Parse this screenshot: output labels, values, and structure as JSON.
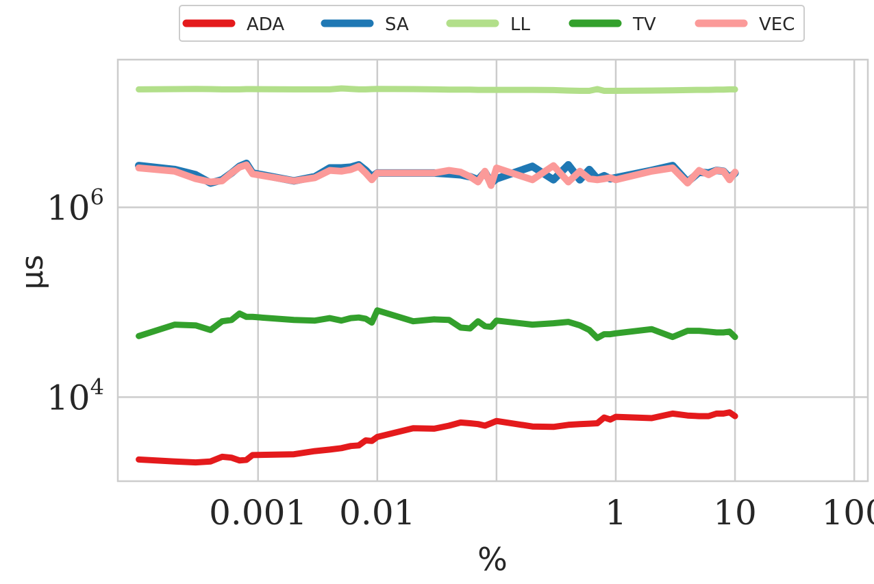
{
  "chart_data": {
    "type": "line",
    "xlabel": "%",
    "ylabel": "μs",
    "x_scale": "log",
    "y_scale": "log",
    "grid": true,
    "legend_placement": "top-center",
    "xlim": [
      6.67e-05,
      130
    ],
    "ylim": [
      1300,
      36000000
    ],
    "x_ticks": [
      {
        "value": 0.001,
        "label": "0.001"
      },
      {
        "value": 0.01,
        "label": "0.01"
      },
      {
        "value": 0.1,
        "label": ""
      },
      {
        "value": 1,
        "label": "1"
      },
      {
        "value": 10,
        "label": "10"
      },
      {
        "value": 100,
        "label": "100"
      }
    ],
    "y_ticks": [
      {
        "value": 10000,
        "base": "10",
        "exp": "4"
      },
      {
        "value": 1000000,
        "base": "10",
        "exp": "6"
      }
    ],
    "series": [
      {
        "name": "ADA",
        "color": "#e41a1c",
        "points": [
          [
            0.0001,
            2200
          ],
          [
            0.0002,
            2100
          ],
          [
            0.0003,
            2050
          ],
          [
            0.0004,
            2100
          ],
          [
            0.0005,
            2350
          ],
          [
            0.0006,
            2300
          ],
          [
            0.0007,
            2150
          ],
          [
            0.0008,
            2180
          ],
          [
            0.0009,
            2450
          ],
          [
            0.002,
            2500
          ],
          [
            0.003,
            2700
          ],
          [
            0.004,
            2800
          ],
          [
            0.005,
            2900
          ],
          [
            0.006,
            3050
          ],
          [
            0.007,
            3100
          ],
          [
            0.008,
            3500
          ],
          [
            0.009,
            3450
          ],
          [
            0.01,
            3800
          ],
          [
            0.02,
            4700
          ],
          [
            0.03,
            4650
          ],
          [
            0.04,
            5000
          ],
          [
            0.05,
            5400
          ],
          [
            0.06,
            5300
          ],
          [
            0.07,
            5200
          ],
          [
            0.08,
            5000
          ],
          [
            0.09,
            5300
          ],
          [
            0.1,
            5600
          ],
          [
            0.2,
            4900
          ],
          [
            0.3,
            4850
          ],
          [
            0.4,
            5100
          ],
          [
            0.5,
            5200
          ],
          [
            0.6,
            5250
          ],
          [
            0.7,
            5300
          ],
          [
            0.8,
            6100
          ],
          [
            0.9,
            5800
          ],
          [
            1,
            6200
          ],
          [
            2,
            6000
          ],
          [
            3,
            6700
          ],
          [
            4,
            6400
          ],
          [
            5,
            6300
          ],
          [
            6,
            6300
          ],
          [
            7,
            6700
          ],
          [
            8,
            6700
          ],
          [
            9,
            6900
          ],
          [
            10,
            6300
          ]
        ]
      },
      {
        "name": "SA",
        "color": "#1f78b4",
        "points": [
          [
            0.0001,
            2750000
          ],
          [
            0.0002,
            2500000
          ],
          [
            0.0003,
            2200000
          ],
          [
            0.0004,
            1800000
          ],
          [
            0.0005,
            1950000
          ],
          [
            0.0006,
            2300000
          ],
          [
            0.0007,
            2700000
          ],
          [
            0.0008,
            2900000
          ],
          [
            0.0009,
            2300000
          ],
          [
            0.002,
            1900000
          ],
          [
            0.003,
            2100000
          ],
          [
            0.004,
            2600000
          ],
          [
            0.005,
            2600000
          ],
          [
            0.006,
            2650000
          ],
          [
            0.007,
            2800000
          ],
          [
            0.008,
            2450000
          ],
          [
            0.009,
            2100000
          ],
          [
            0.01,
            2300000
          ],
          [
            0.02,
            2300000
          ],
          [
            0.03,
            2300000
          ],
          [
            0.04,
            2250000
          ],
          [
            0.05,
            2200000
          ],
          [
            0.06,
            2100000
          ],
          [
            0.07,
            1950000
          ],
          [
            0.08,
            2350000
          ],
          [
            0.09,
            1800000
          ],
          [
            0.1,
            2000000
          ],
          [
            0.2,
            2700000
          ],
          [
            0.3,
            1950000
          ],
          [
            0.4,
            2800000
          ],
          [
            0.5,
            1950000
          ],
          [
            0.6,
            2500000
          ],
          [
            0.7,
            2000000
          ],
          [
            0.8,
            2150000
          ],
          [
            0.9,
            2000000
          ],
          [
            1,
            2050000
          ],
          [
            2,
            2450000
          ],
          [
            3,
            2750000
          ],
          [
            4,
            1850000
          ],
          [
            5,
            2350000
          ],
          [
            6,
            2300000
          ],
          [
            7,
            2450000
          ],
          [
            8,
            2400000
          ],
          [
            9,
            2050000
          ],
          [
            10,
            2300000
          ]
        ]
      },
      {
        "name": "LL",
        "color": "#b2df8a",
        "points": [
          [
            0.0001,
            17500000
          ],
          [
            0.0002,
            17600000
          ],
          [
            0.0003,
            17700000
          ],
          [
            0.0004,
            17600000
          ],
          [
            0.0005,
            17500000
          ],
          [
            0.0006,
            17500000
          ],
          [
            0.0007,
            17500000
          ],
          [
            0.0008,
            17600000
          ],
          [
            0.0009,
            17600000
          ],
          [
            0.002,
            17500000
          ],
          [
            0.003,
            17500000
          ],
          [
            0.004,
            17500000
          ],
          [
            0.005,
            17900000
          ],
          [
            0.006,
            17700000
          ],
          [
            0.007,
            17500000
          ],
          [
            0.008,
            17500000
          ],
          [
            0.009,
            17600000
          ],
          [
            0.01,
            17700000
          ],
          [
            0.02,
            17600000
          ],
          [
            0.03,
            17500000
          ],
          [
            0.04,
            17400000
          ],
          [
            0.05,
            17400000
          ],
          [
            0.06,
            17400000
          ],
          [
            0.07,
            17300000
          ],
          [
            0.08,
            17300000
          ],
          [
            0.09,
            17300000
          ],
          [
            0.1,
            17300000
          ],
          [
            0.2,
            17300000
          ],
          [
            0.3,
            17200000
          ],
          [
            0.4,
            17000000
          ],
          [
            0.5,
            16900000
          ],
          [
            0.6,
            16900000
          ],
          [
            0.7,
            17600000
          ],
          [
            0.8,
            16900000
          ],
          [
            0.9,
            16900000
          ],
          [
            1,
            16900000
          ],
          [
            2,
            17000000
          ],
          [
            3,
            17100000
          ],
          [
            4,
            17200000
          ],
          [
            5,
            17300000
          ],
          [
            6,
            17300000
          ],
          [
            7,
            17400000
          ],
          [
            8,
            17400000
          ],
          [
            9,
            17500000
          ],
          [
            10,
            17500000
          ]
        ]
      },
      {
        "name": "TV",
        "color": "#33a02c",
        "points": [
          [
            0.0001,
            44000
          ],
          [
            0.0002,
            58000
          ],
          [
            0.0003,
            57000
          ],
          [
            0.0004,
            51000
          ],
          [
            0.0005,
            63000
          ],
          [
            0.0006,
            65000
          ],
          [
            0.0007,
            76000
          ],
          [
            0.0008,
            70000
          ],
          [
            0.0009,
            70000
          ],
          [
            0.002,
            65000
          ],
          [
            0.003,
            64000
          ],
          [
            0.004,
            68000
          ],
          [
            0.005,
            64000
          ],
          [
            0.006,
            68000
          ],
          [
            0.007,
            69000
          ],
          [
            0.008,
            67000
          ],
          [
            0.009,
            61000
          ],
          [
            0.01,
            82000
          ],
          [
            0.02,
            63000
          ],
          [
            0.03,
            66000
          ],
          [
            0.04,
            65000
          ],
          [
            0.05,
            54000
          ],
          [
            0.06,
            53000
          ],
          [
            0.07,
            63000
          ],
          [
            0.08,
            56000
          ],
          [
            0.09,
            55000
          ],
          [
            0.1,
            64000
          ],
          [
            0.2,
            58000
          ],
          [
            0.3,
            60000
          ],
          [
            0.4,
            62000
          ],
          [
            0.5,
            57000
          ],
          [
            0.6,
            51000
          ],
          [
            0.7,
            42000
          ],
          [
            0.8,
            46000
          ],
          [
            0.9,
            46000
          ],
          [
            1,
            47000
          ],
          [
            2,
            52000
          ],
          [
            3,
            43000
          ],
          [
            4,
            50000
          ],
          [
            5,
            50000
          ],
          [
            6,
            49000
          ],
          [
            7,
            48000
          ],
          [
            8,
            48000
          ],
          [
            9,
            49000
          ],
          [
            10,
            43000
          ]
        ]
      },
      {
        "name": "VEC",
        "color": "#fb9a99",
        "points": [
          [
            0.0001,
            2600000
          ],
          [
            0.0002,
            2400000
          ],
          [
            0.0003,
            2000000
          ],
          [
            0.0004,
            1850000
          ],
          [
            0.0005,
            1900000
          ],
          [
            0.0006,
            2300000
          ],
          [
            0.0007,
            2650000
          ],
          [
            0.0008,
            2800000
          ],
          [
            0.0009,
            2250000
          ],
          [
            0.002,
            1900000
          ],
          [
            0.003,
            2050000
          ],
          [
            0.004,
            2450000
          ],
          [
            0.005,
            2400000
          ],
          [
            0.006,
            2500000
          ],
          [
            0.007,
            2700000
          ],
          [
            0.008,
            2300000
          ],
          [
            0.009,
            1950000
          ],
          [
            0.01,
            2300000
          ],
          [
            0.02,
            2300000
          ],
          [
            0.03,
            2300000
          ],
          [
            0.04,
            2450000
          ],
          [
            0.05,
            2350000
          ],
          [
            0.06,
            2100000
          ],
          [
            0.07,
            1850000
          ],
          [
            0.08,
            2400000
          ],
          [
            0.09,
            1700000
          ],
          [
            0.1,
            2600000
          ],
          [
            0.2,
            1950000
          ],
          [
            0.3,
            2750000
          ],
          [
            0.4,
            1850000
          ],
          [
            0.5,
            2400000
          ],
          [
            0.6,
            2000000
          ],
          [
            0.7,
            1950000
          ],
          [
            0.8,
            2000000
          ],
          [
            0.9,
            2050000
          ],
          [
            1,
            1950000
          ],
          [
            2,
            2400000
          ],
          [
            3,
            2600000
          ],
          [
            4,
            1800000
          ],
          [
            5,
            2450000
          ],
          [
            6,
            2200000
          ],
          [
            7,
            2450000
          ],
          [
            8,
            2400000
          ],
          [
            9,
            1950000
          ],
          [
            10,
            2350000
          ]
        ]
      }
    ]
  }
}
